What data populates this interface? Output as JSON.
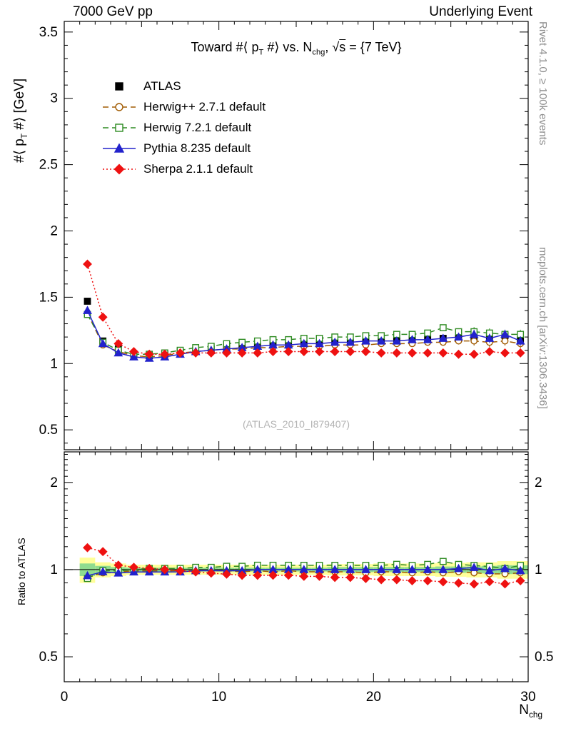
{
  "header": {
    "left": "7000 GeV pp",
    "right": "Underlying Event"
  },
  "title": {
    "p1": "Toward #⟨ p",
    "sub1": "T",
    "p2": " #⟩ vs. N",
    "sub2": "chg",
    "p3": ", ",
    "sqrt": "√",
    "s": "s",
    "p4": " = {7 TeV}"
  },
  "ylabel": {
    "p1": "#⟨ p",
    "sub1": "T",
    "p2": " #⟩ [GeV]"
  },
  "xlabel": {
    "p1": "N",
    "sub1": "chg"
  },
  "ratio_label": "Ratio to ATLAS",
  "watermark": "(ATLAS_2010_I879407)",
  "side_notes": {
    "top": "Rivet 4.1.0, ≥ 100k events",
    "bottom": "mcplots.cern.ch [arXiv:1306.3436]"
  },
  "chart_data": {
    "type": "line",
    "title": "Toward ⟨pT⟩ vs. Nchg, √s = 7 TeV",
    "xlabel": "Nchg",
    "ylabel": "⟨pT⟩ [GeV]",
    "ylabel_ratio": "Ratio to ATLAS",
    "legend_position": "top-left",
    "grid": false,
    "xlim": [
      0,
      30
    ],
    "ylim_main": [
      0.35,
      3.58
    ],
    "ylim_ratio": [
      0.41,
      2.55
    ],
    "ratio_scale": "log",
    "x_major": [
      0,
      10,
      20,
      30
    ],
    "x_major_labels": [
      "0",
      "10",
      "20",
      "30"
    ],
    "x_minor_step": 1,
    "x_medium_step": 5,
    "y_major": [
      0.5,
      1,
      1.5,
      2,
      2.5,
      3,
      3.5
    ],
    "y_major_labels": [
      "0.5",
      "1",
      "1.5",
      "2",
      "2.5",
      "3",
      "3.5"
    ],
    "y_minor_step": 0.1,
    "ratio_major": [
      0.5,
      1,
      2
    ],
    "ratio_major_labels": [
      "0.5",
      "1",
      "2"
    ],
    "ratio_minor_step": 0.1,
    "x": [
      1.5,
      2.5,
      3.5,
      4.5,
      5.5,
      6.5,
      7.5,
      8.5,
      9.5,
      10.5,
      11.5,
      12.5,
      13.5,
      14.5,
      15.5,
      16.5,
      17.5,
      18.5,
      19.5,
      20.5,
      21.5,
      22.5,
      23.5,
      24.5,
      25.5,
      26.5,
      27.5,
      28.5,
      29.5
    ],
    "band": {
      "outer_color": "#ffff99",
      "inner_color": "#8fdc8f",
      "outer_halfwidth": [
        0.1,
        0.06,
        0.05,
        0.04,
        0.04,
        0.04,
        0.04,
        0.04,
        0.04,
        0.04,
        0.04,
        0.04,
        0.04,
        0.04,
        0.04,
        0.04,
        0.045,
        0.045,
        0.045,
        0.05,
        0.05,
        0.05,
        0.05,
        0.055,
        0.055,
        0.06,
        0.06,
        0.07,
        0.07
      ],
      "inner_halfwidth": [
        0.05,
        0.03,
        0.02,
        0.015,
        0.015,
        0.015,
        0.015,
        0.015,
        0.015,
        0.015,
        0.015,
        0.015,
        0.015,
        0.015,
        0.015,
        0.015,
        0.02,
        0.02,
        0.02,
        0.02,
        0.02,
        0.02,
        0.02,
        0.025,
        0.025,
        0.025,
        0.03,
        0.035,
        0.035
      ]
    },
    "series": [
      {
        "name": "ATLAS",
        "color": "#000000",
        "marker": "square",
        "fill": true,
        "line": "none",
        "yerr_base": 0.01,
        "yerr_tail": 0.02,
        "tail_from": 25,
        "values": [
          1.47,
          1.17,
          1.11,
          1.07,
          1.06,
          1.07,
          1.09,
          1.1,
          1.11,
          1.12,
          1.13,
          1.13,
          1.14,
          1.14,
          1.15,
          1.15,
          1.16,
          1.16,
          1.17,
          1.17,
          1.17,
          1.18,
          1.18,
          1.19,
          1.19,
          1.2,
          1.2,
          1.21,
          1.18
        ]
      },
      {
        "name": "Herwig++ 2.7.1 default",
        "color": "#a05a00",
        "marker": "circle",
        "fill": false,
        "line": "dash",
        "yerr_base": 0.012,
        "yerr_tail": 0.035,
        "tail_from": 25,
        "values": [
          1.38,
          1.14,
          1.09,
          1.06,
          1.05,
          1.06,
          1.08,
          1.09,
          1.1,
          1.11,
          1.11,
          1.12,
          1.12,
          1.13,
          1.13,
          1.13,
          1.14,
          1.14,
          1.14,
          1.15,
          1.15,
          1.15,
          1.16,
          1.16,
          1.17,
          1.17,
          1.16,
          1.17,
          1.15
        ]
      },
      {
        "name": "Herwig 7.2.1 default",
        "color": "#2e8b22",
        "marker": "square",
        "fill": false,
        "line": "dash",
        "yerr_base": 0.012,
        "yerr_tail": 0.035,
        "tail_from": 25,
        "values": [
          1.37,
          1.16,
          1.1,
          1.07,
          1.07,
          1.08,
          1.1,
          1.12,
          1.13,
          1.15,
          1.16,
          1.17,
          1.18,
          1.18,
          1.19,
          1.19,
          1.2,
          1.2,
          1.21,
          1.21,
          1.22,
          1.22,
          1.23,
          1.27,
          1.24,
          1.24,
          1.23,
          1.22,
          1.22
        ]
      },
      {
        "name": "Pythia 8.235 default",
        "color": "#2222cc",
        "marker": "triangle",
        "fill": true,
        "line": "solid",
        "yerr_base": 0.012,
        "yerr_tail": 0.035,
        "tail_from": 25,
        "values": [
          1.4,
          1.15,
          1.08,
          1.05,
          1.04,
          1.05,
          1.07,
          1.09,
          1.1,
          1.11,
          1.12,
          1.13,
          1.14,
          1.14,
          1.15,
          1.15,
          1.16,
          1.16,
          1.17,
          1.17,
          1.17,
          1.18,
          1.18,
          1.19,
          1.2,
          1.22,
          1.19,
          1.22,
          1.17
        ]
      },
      {
        "name": "Sherpa 2.1.1 default",
        "color": "#ee1111",
        "marker": "diamond",
        "fill": true,
        "line": "dot",
        "yerr_base": 0.012,
        "yerr_tail": 0.025,
        "tail_from": 25,
        "values": [
          1.75,
          1.35,
          1.15,
          1.09,
          1.07,
          1.07,
          1.08,
          1.08,
          1.08,
          1.08,
          1.08,
          1.08,
          1.09,
          1.09,
          1.09,
          1.09,
          1.09,
          1.09,
          1.09,
          1.08,
          1.08,
          1.08,
          1.08,
          1.08,
          1.07,
          1.07,
          1.09,
          1.08,
          1.08
        ]
      }
    ]
  }
}
